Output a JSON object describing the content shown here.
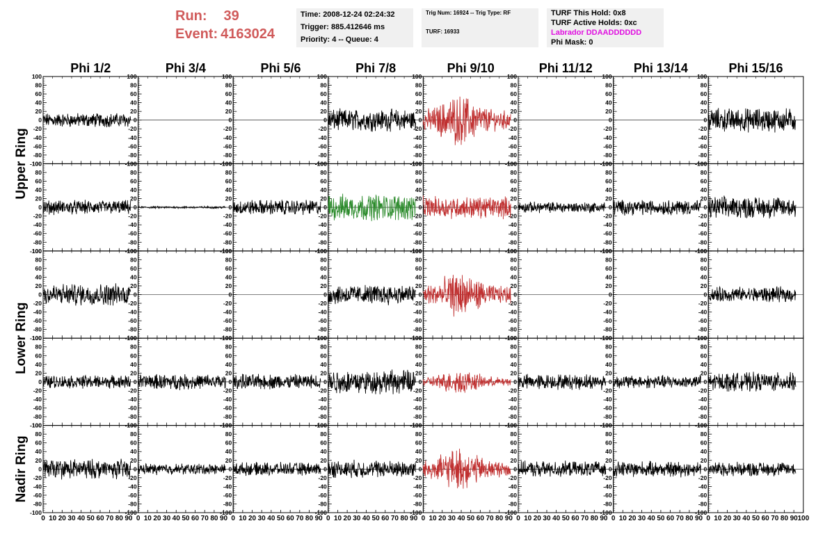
{
  "header": {
    "run_label": "Run:",
    "run_value": "39",
    "event_label": "Event:",
    "event_value": "4163024",
    "time": "Time: 2008-12-24 02:24:32",
    "trigger": "Trigger: 885.412646 ms",
    "priority": "Priority: 4 -- Queue: 4",
    "trig_num": "Trig Num: 16924 -- Trig Type: RF",
    "turf": "TURF: 16933",
    "turf_this_hold": "TURF This Hold: 0x8",
    "turf_active_holds": "TURF Active Holds: 0xc",
    "labrador": "Labrador DDAADDDDDD",
    "phi_mask": "Phi Mask: 0"
  },
  "colors": {
    "run_text": "#d05a5a",
    "labrador_text": "#e010e0",
    "trace_default": "#000000",
    "trace_red": "#c03030",
    "trace_green": "#2a8a2a",
    "info_box_bg": "#f0f0f0"
  },
  "chart_data": {
    "type": "line",
    "column_labels": [
      "Phi 1/2",
      "Phi 3/4",
      "Phi 5/6",
      "Phi 7/8",
      "Phi 9/10",
      "Phi 11/12",
      "Phi 13/14",
      "Phi 15/16"
    ],
    "ring_labels": [
      "Upper Ring",
      "Lower Ring",
      "Nadir Ring"
    ],
    "ring_spans": [
      [
        0,
        2
      ],
      [
        2,
        4
      ],
      [
        4,
        5
      ]
    ],
    "ylim": [
      -100,
      100
    ],
    "xlim": [
      0,
      100
    ],
    "y_ticks": [
      -100,
      -80,
      -60,
      -40,
      -20,
      0,
      20,
      40,
      60,
      80,
      100
    ],
    "x_ticks": [
      0,
      10,
      20,
      30,
      40,
      50,
      60,
      70,
      80,
      90,
      100
    ],
    "x_tick_labels": [
      "0",
      "10",
      "20",
      "30",
      "40",
      "50",
      "60",
      "70",
      "80",
      "90",
      "100"
    ],
    "y_tick_labels": [
      "-100",
      "-80",
      "-60",
      "-40",
      "-20",
      "0",
      "20",
      "40",
      "60",
      "80",
      "100"
    ],
    "trace_x_range": [
      0,
      92
    ],
    "grid": false,
    "panels": [
      [
        {
          "amp": 13,
          "color": "black"
        },
        {
          "amp": 0,
          "color": "black"
        },
        {
          "amp": 0,
          "color": "black"
        },
        {
          "amp": 20,
          "color": "black"
        },
        {
          "amp": 32,
          "color": "red",
          "burst": true
        },
        {
          "amp": 0,
          "color": "black"
        },
        {
          "amp": 0,
          "color": "black"
        },
        {
          "amp": 22,
          "color": "black"
        }
      ],
      [
        {
          "amp": 13,
          "color": "black"
        },
        {
          "amp": 2,
          "color": "black"
        },
        {
          "amp": 14,
          "color": "black"
        },
        {
          "amp": 24,
          "color": "green"
        },
        {
          "amp": 20,
          "color": "red"
        },
        {
          "amp": 10,
          "color": "black"
        },
        {
          "amp": 14,
          "color": "black"
        },
        {
          "amp": 20,
          "color": "black"
        }
      ],
      [
        {
          "amp": 20,
          "color": "black"
        },
        {
          "amp": 0,
          "color": "black"
        },
        {
          "amp": 0,
          "color": "black"
        },
        {
          "amp": 18,
          "color": "black"
        },
        {
          "amp": 28,
          "color": "red",
          "burst": true
        },
        {
          "amp": 0,
          "color": "black"
        },
        {
          "amp": 0,
          "color": "black"
        },
        {
          "amp": 14,
          "color": "black"
        }
      ],
      [
        {
          "amp": 12,
          "color": "black"
        },
        {
          "amp": 14,
          "color": "black"
        },
        {
          "amp": 14,
          "color": "black"
        },
        {
          "amp": 22,
          "color": "black"
        },
        {
          "amp": 15,
          "color": "red",
          "burst": true
        },
        {
          "amp": 14,
          "color": "black"
        },
        {
          "amp": 12,
          "color": "black"
        },
        {
          "amp": 17,
          "color": "black"
        }
      ],
      [
        {
          "amp": 18,
          "color": "black"
        },
        {
          "amp": 10,
          "color": "black"
        },
        {
          "amp": 12,
          "color": "black"
        },
        {
          "amp": 16,
          "color": "black"
        },
        {
          "amp": 26,
          "color": "red",
          "burst": true
        },
        {
          "amp": 14,
          "color": "black"
        },
        {
          "amp": 14,
          "color": "black"
        },
        {
          "amp": 13,
          "color": "black"
        }
      ]
    ]
  }
}
